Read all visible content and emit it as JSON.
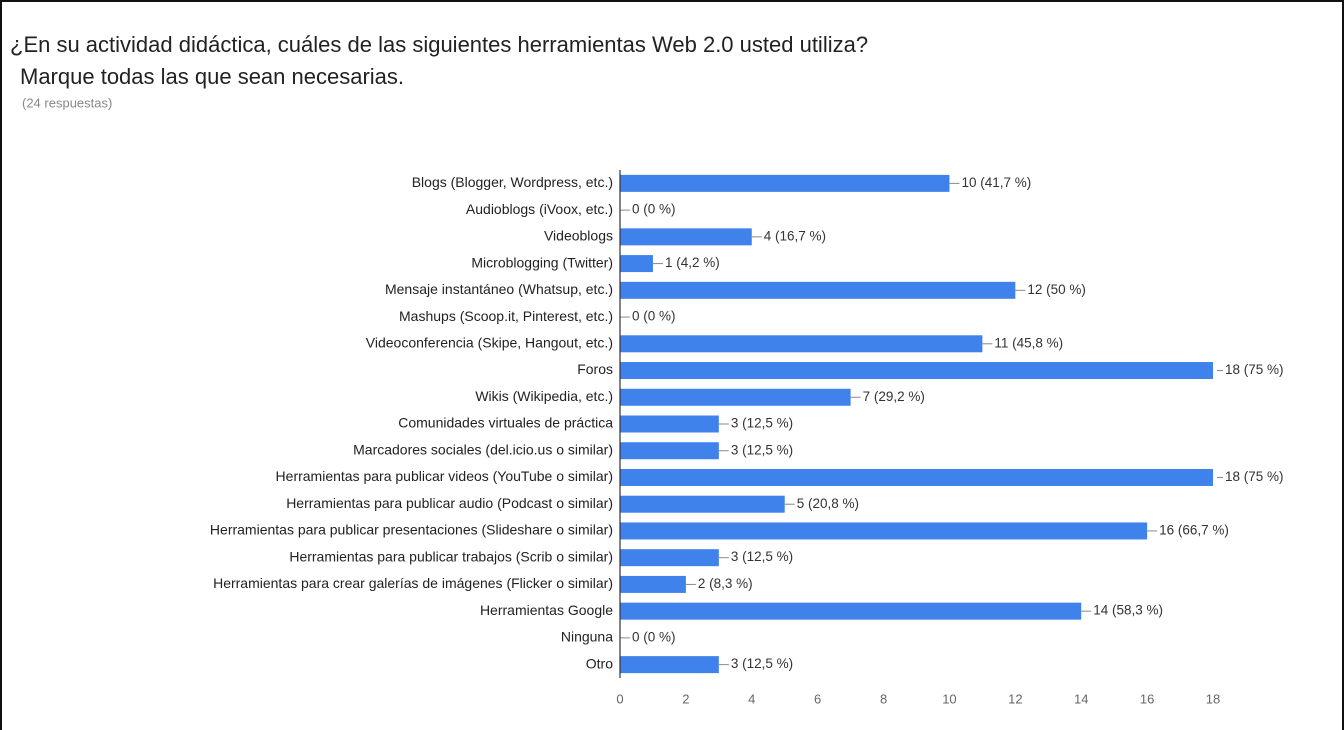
{
  "chart_data": {
    "type": "bar",
    "orientation": "horizontal",
    "title": "¿En su actividad didáctica, cuáles de las siguientes herramientas Web 2.0  usted utiliza?",
    "instruction": "Marque todas las que sean necesarias.",
    "subtitle": "(24 respuestas)",
    "categories": [
      "Blogs (Blogger, Wordpress, etc.)",
      "Audioblogs (iVoox, etc.)",
      "Videoblogs",
      "Microblogging (Twitter)",
      "Mensaje instantáneo (Whatsup, etc.)",
      "Mashups (Scoop.it, Pinterest, etc.)",
      "Videoconferencia (Skipe, Hangout, etc.)",
      "Foros",
      "Wikis (Wikipedia, etc.)",
      "Comunidades virtuales de práctica",
      "Marcadores sociales (del.icio.us o similar)",
      "Herramientas para publicar videos (YouTube o similar)",
      "Herramientas para publicar audio (Podcast o similar)",
      "Herramientas para publicar presentaciones (Slideshare o similar)",
      "Herramientas para publicar trabajos (Scrib o similar)",
      "Herramientas para crear galerías de imágenes (Flicker o similar)",
      "Herramientas Google",
      "Ninguna",
      "Otro"
    ],
    "values": [
      10,
      0,
      4,
      1,
      12,
      0,
      11,
      18,
      7,
      3,
      3,
      18,
      5,
      16,
      3,
      2,
      14,
      0,
      3
    ],
    "value_labels": [
      "10 (41,7 %)",
      "0 (0 %)",
      "4 (16,7 %)",
      "1 (4,2 %)",
      "12 (50 %)",
      "0 (0 %)",
      "11 (45,8 %)",
      "18 (75 %)",
      "7 (29,2 %)",
      "3 (12,5 %)",
      "3 (12,5 %)",
      "18 (75 %)",
      "5 (20,8 %)",
      "16 (66,7 %)",
      "3 (12,5 %)",
      "2 (8,3 %)",
      "14 (58,3 %)",
      "0 (0 %)",
      "3 (12,5 %)"
    ],
    "color": "#3f82eb",
    "xlim": [
      0,
      18
    ],
    "xticks": [
      0,
      2,
      4,
      6,
      8,
      10,
      12,
      14,
      16,
      18
    ],
    "grid": false
  }
}
